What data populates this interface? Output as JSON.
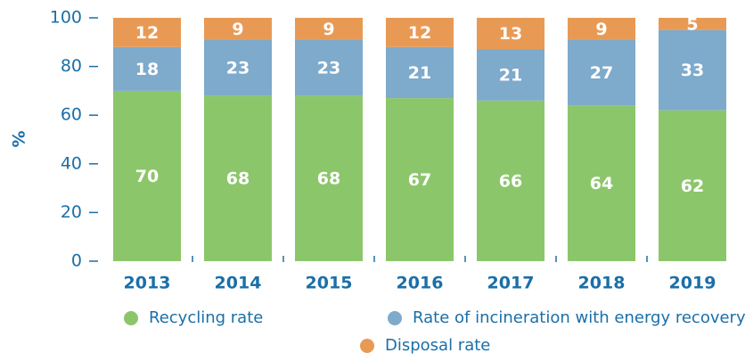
{
  "chart_data": {
    "type": "stacked_bar",
    "categories": [
      "2013",
      "2014",
      "2015",
      "2016",
      "2017",
      "2018",
      "2019"
    ],
    "series": [
      {
        "name": "Recycling rate",
        "color": "#8cc66b",
        "values": [
          70,
          68,
          68,
          67,
          66,
          64,
          62
        ]
      },
      {
        "name": "Rate of incineration with energy recovery",
        "color": "#7eaacb",
        "values": [
          18,
          23,
          23,
          21,
          21,
          27,
          33
        ]
      },
      {
        "name": "Disposal rate",
        "color": "#e89a55",
        "values": [
          12,
          9,
          9,
          12,
          13,
          9,
          5
        ]
      }
    ],
    "y_label": "%",
    "ylim": [
      0,
      100
    ],
    "yticks": [
      0,
      20,
      40,
      60,
      80,
      100
    ]
  }
}
